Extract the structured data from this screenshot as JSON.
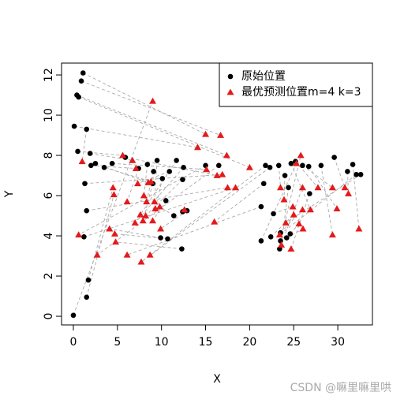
{
  "chart_data": {
    "type": "scatter",
    "xlabel": "X",
    "ylabel": "Y",
    "xlim": [
      -1.34,
      33.93
    ],
    "ylim": [
      -0.43,
      12.59
    ],
    "xticks": [
      0,
      5,
      10,
      15,
      20,
      25,
      30
    ],
    "yticks": [
      0,
      2,
      4,
      6,
      8,
      10,
      12
    ],
    "links": true,
    "legend": "top-right",
    "watermark": "CSDN @嘛里嘛里哄",
    "series": [
      {
        "name": "原始位置",
        "color": "#000000",
        "marker": "circle",
        "x": [
          0,
          1.1,
          0.9,
          0.4,
          0.6,
          0.1,
          1.5,
          0.5,
          1.9,
          2.0,
          2.5,
          3.5,
          4.4,
          5.9,
          1.3,
          1.5,
          1.2,
          1.7,
          1.5,
          7.4,
          8.4,
          9.1,
          9.5,
          10.1,
          10.9,
          11.7,
          12.4,
          12.5,
          9.0,
          10.5,
          11.4,
          12.4,
          12.9,
          9.9,
          10.7,
          12.3,
          15.0,
          16.5,
          21.3,
          21.8,
          22.3,
          21.6,
          23.3,
          24.0,
          22.7,
          22.4,
          21.3,
          23.5,
          23.4,
          23.5,
          24.6,
          24.2,
          24.7,
          25.2,
          26.0,
          26.7,
          28.1,
          29.6,
          31.1,
          31.7,
          32.1,
          32.6,
          26.8,
          24.4
        ],
        "values": [
          0.05,
          12.1,
          11.7,
          11.0,
          10.9,
          9.45,
          9.3,
          8.2,
          8.1,
          7.5,
          7.6,
          7.4,
          7.6,
          7.9,
          6.6,
          5.25,
          3.95,
          1.8,
          0.95,
          7.35,
          7.55,
          7.2,
          7.75,
          6.85,
          7.2,
          7.75,
          6.8,
          7.4,
          6.6,
          5.75,
          5.0,
          5.2,
          5.25,
          3.9,
          3.85,
          3.35,
          7.5,
          7.5,
          5.45,
          7.5,
          7.4,
          6.6,
          7.5,
          7.0,
          5.1,
          3.95,
          3.75,
          3.75,
          3.35,
          4.15,
          4.1,
          3.9,
          7.6,
          7.7,
          7.5,
          7.45,
          7.5,
          7.9,
          7.2,
          7.55,
          7.05,
          7.05,
          6.1,
          6.4
        ]
      },
      {
        "name": "最优预测位置m=4 k=3",
        "color": "#e31a1c",
        "marker": "triangle",
        "x": [
          9.0,
          15.0,
          16.7,
          17.4,
          20.0,
          14.1,
          1.0,
          5.6,
          6.7,
          7.1,
          8.5,
          8.8,
          15.1,
          16.3,
          16.9,
          17.5,
          18.4,
          4.5,
          4.6,
          6.1,
          8.0,
          8.3,
          9.2,
          9.3,
          7.3,
          7.6,
          8.2,
          7.0,
          7.9,
          9.0,
          9.8,
          12.6,
          9.9,
          4.1,
          4.7,
          4.8,
          0.6,
          2.7,
          6.1,
          8.7,
          7.7,
          16.0,
          23.5,
          23.9,
          24.9,
          25.0,
          25.3,
          25.8,
          26.0,
          26.0,
          25.6,
          26.05,
          26.9,
          27.75,
          29.4,
          29.9,
          29.4,
          30.8,
          31.2,
          32.4,
          23.4,
          24.1,
          24.7,
          23.6
        ],
        "values": [
          10.7,
          9.05,
          9.0,
          8.0,
          7.4,
          8.4,
          7.7,
          8.0,
          7.75,
          7.35,
          6.65,
          6.7,
          7.3,
          7.0,
          7.05,
          6.4,
          6.4,
          6.4,
          6.05,
          5.7,
          6.0,
          5.7,
          5.7,
          5.35,
          6.6,
          5.05,
          5.0,
          4.65,
          4.75,
          4.75,
          5.45,
          5.3,
          4.35,
          4.35,
          4.1,
          3.7,
          4.05,
          3.05,
          3.05,
          3.05,
          2.7,
          4.7,
          6.4,
          5.8,
          5.45,
          5.05,
          7.6,
          8.0,
          6.4,
          5.3,
          4.6,
          4.35,
          5.3,
          6.4,
          6.4,
          5.35,
          4.05,
          6.4,
          6.1,
          4.35,
          4.05,
          4.65,
          3.35,
          3.55
        ]
      }
    ]
  }
}
